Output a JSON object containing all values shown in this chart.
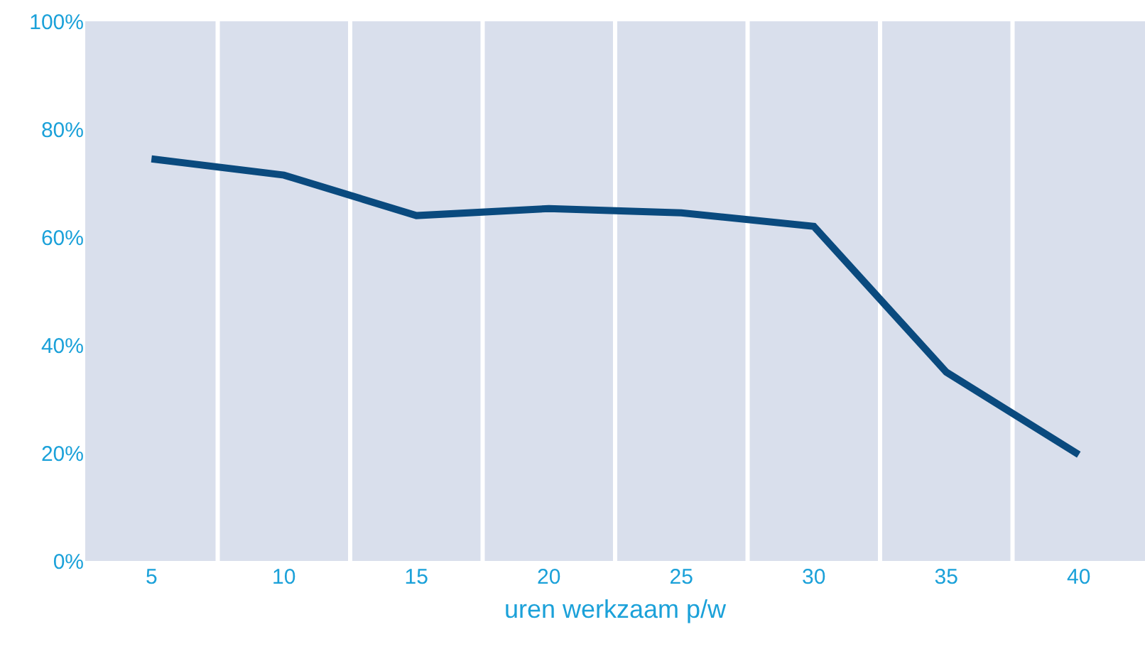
{
  "chart_data": {
    "type": "line",
    "xlabel": "uren werkzaam p/w",
    "categories": [
      "5",
      "10",
      "15",
      "20",
      "25",
      "30",
      "35",
      "40"
    ],
    "series": [
      {
        "color": "#0a4a7e",
        "values": [
          74.5,
          71.5,
          64,
          65.3,
          64.5,
          62,
          35,
          19.7
        ]
      }
    ],
    "ylim": [
      0,
      100
    ],
    "yticks": [
      {
        "value": 0,
        "label": "0%"
      },
      {
        "value": 20,
        "label": "20%"
      },
      {
        "value": 40,
        "label": "40%"
      },
      {
        "value": 60,
        "label": "60%"
      },
      {
        "value": 80,
        "label": "80%"
      },
      {
        "value": 100,
        "label": "100%"
      }
    ],
    "grid": "x",
    "legend": false,
    "marker": "none",
    "line_style": "solid"
  }
}
